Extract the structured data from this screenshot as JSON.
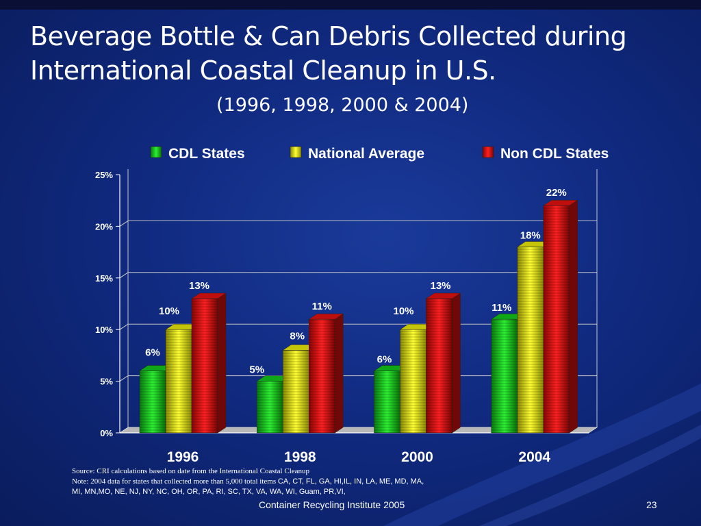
{
  "title": {
    "line1": "Beverage Bottle & Can Debris Collected during",
    "line2": "International Coastal Cleanup in U.S.",
    "subtitle": "(1996, 1998, 2000 & 2004)"
  },
  "chart_data": {
    "type": "bar",
    "style": "3d-clustered",
    "categories": [
      "1996",
      "1998",
      "2000",
      "2004"
    ],
    "series": [
      {
        "name": "CDL States",
        "values": [
          6,
          5,
          6,
          11
        ],
        "labels": [
          "6%",
          "5%",
          "6%",
          "11%"
        ],
        "color": "#12c41a"
      },
      {
        "name": "National Average",
        "values": [
          10,
          8,
          10,
          18
        ],
        "labels": [
          "10%",
          "8%",
          "10%",
          "18%"
        ],
        "color": "#e6e60a"
      },
      {
        "name": "Non CDL States",
        "values": [
          13,
          11,
          13,
          22
        ],
        "labels": [
          "13%",
          "11%",
          "13%",
          "22%"
        ],
        "color": "#e01010"
      }
    ],
    "y_ticks": [
      "0%",
      "5%",
      "10%",
      "15%",
      "20%",
      "25%"
    ],
    "ylim": [
      0,
      25
    ],
    "grid": true,
    "legend_position": "top"
  },
  "source": {
    "line1": "Source:  CRI calculations based on date from the International Coastal Cleanup",
    "note_prefix": "Note:  2004 data for states that collected more than 5,000 total items ",
    "note_states": "CA, CT, FL, GA, HI,IL, IN, LA, ME, MD, MA,",
    "line3": "MI, MN,MO, NE, NJ, NY, NC, OH, OR, PA, RI, SC, TX, VA, WA, WI, Guam, PR,VI,"
  },
  "footer": {
    "organization": "Container Recycling Institute   2005",
    "page_number": "23"
  }
}
